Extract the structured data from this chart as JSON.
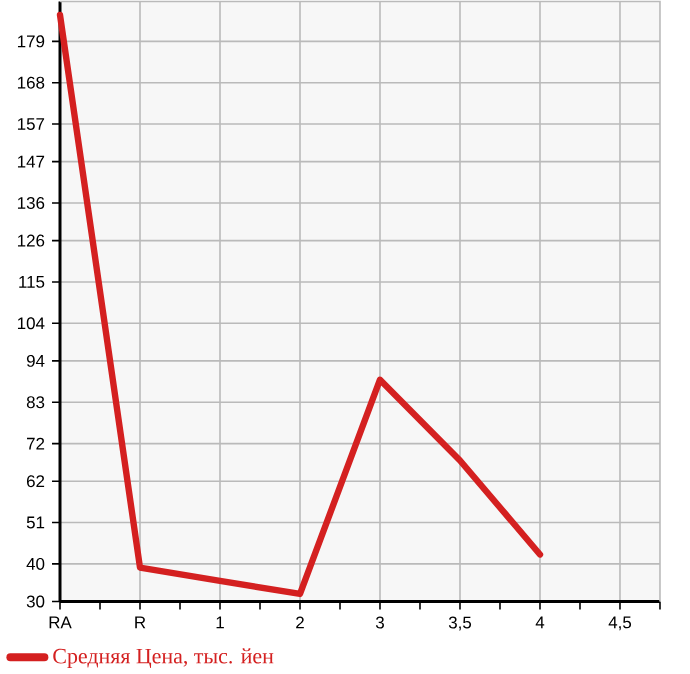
{
  "chart_data": {
    "type": "line",
    "categories": [
      "RA",
      "R",
      "1",
      "2",
      "3",
      "3,5",
      "4",
      "4,5"
    ],
    "series": [
      {
        "name": "Средняя Цена, тыс. йен",
        "color": "#d42020",
        "values": [
          186,
          39,
          35.5,
          32,
          89,
          67.5,
          42.5,
          null
        ]
      }
    ],
    "ylim": [
      30,
      189.6
    ],
    "yticks": [
      30,
      40,
      51,
      62,
      72,
      83,
      94,
      104,
      115,
      126,
      136,
      147,
      157,
      168,
      179
    ],
    "grid": true,
    "legend": "bottom left",
    "marker": "none",
    "line_style": "solid"
  }
}
